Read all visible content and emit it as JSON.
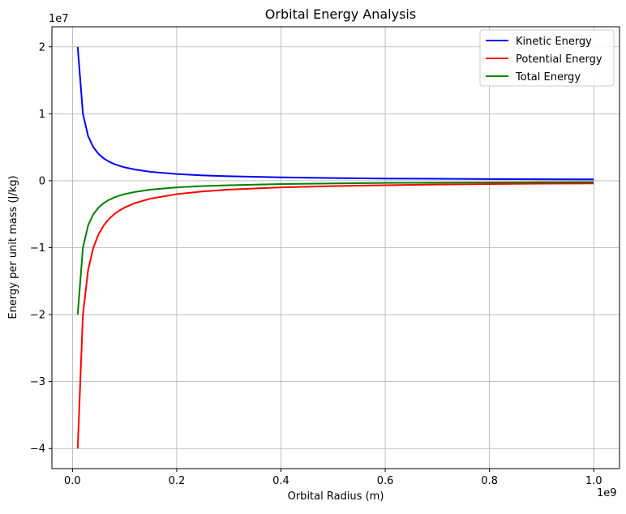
{
  "chart_data": {
    "type": "line",
    "title": "Orbital Energy Analysis",
    "xlabel": "Orbital Radius (m)",
    "ylabel": "Energy per unit mass (J/kg)",
    "x_offset_label": "1e9",
    "y_offset_label": "1e7",
    "xlim": [
      -0.0395,
      1.0495
    ],
    "ylim": [
      -4.3,
      2.3
    ],
    "x_ticks": [
      0.0,
      0.2,
      0.4,
      0.6,
      0.8,
      1.0
    ],
    "x_tick_labels": [
      "0.0",
      "0.2",
      "0.4",
      "0.6",
      "0.8",
      "1.0"
    ],
    "y_ticks": [
      -4,
      -3,
      -2,
      -1,
      0,
      1,
      2
    ],
    "y_tick_labels": [
      "−4",
      "−3",
      "−2",
      "−1",
      "0",
      "1",
      "2"
    ],
    "grid": true,
    "legend_position": "top-right",
    "x": [
      0.01,
      0.02,
      0.03,
      0.04,
      0.05,
      0.06,
      0.07,
      0.08,
      0.09,
      0.1,
      0.12,
      0.15,
      0.2,
      0.25,
      0.3,
      0.4,
      0.5,
      0.6,
      0.7,
      0.8,
      0.9,
      1.0
    ],
    "series": [
      {
        "name": "Kinetic Energy",
        "color": "#0000ff",
        "values": [
          2.0,
          1.0,
          0.667,
          0.5,
          0.4,
          0.333,
          0.286,
          0.25,
          0.222,
          0.2,
          0.167,
          0.133,
          0.1,
          0.08,
          0.067,
          0.05,
          0.04,
          0.033,
          0.029,
          0.025,
          0.022,
          0.02
        ]
      },
      {
        "name": "Potential Energy",
        "color": "#ff0000",
        "values": [
          -4.0,
          -2.0,
          -1.333,
          -1.0,
          -0.8,
          -0.667,
          -0.571,
          -0.5,
          -0.444,
          -0.4,
          -0.333,
          -0.267,
          -0.2,
          -0.16,
          -0.133,
          -0.1,
          -0.08,
          -0.067,
          -0.057,
          -0.05,
          -0.044,
          -0.04
        ]
      },
      {
        "name": "Total Energy",
        "color": "#008000",
        "values": [
          -2.0,
          -1.0,
          -0.667,
          -0.5,
          -0.4,
          -0.333,
          -0.286,
          -0.25,
          -0.222,
          -0.2,
          -0.167,
          -0.133,
          -0.1,
          -0.08,
          -0.067,
          -0.05,
          -0.04,
          -0.033,
          -0.029,
          -0.025,
          -0.022,
          -0.02
        ]
      }
    ]
  }
}
